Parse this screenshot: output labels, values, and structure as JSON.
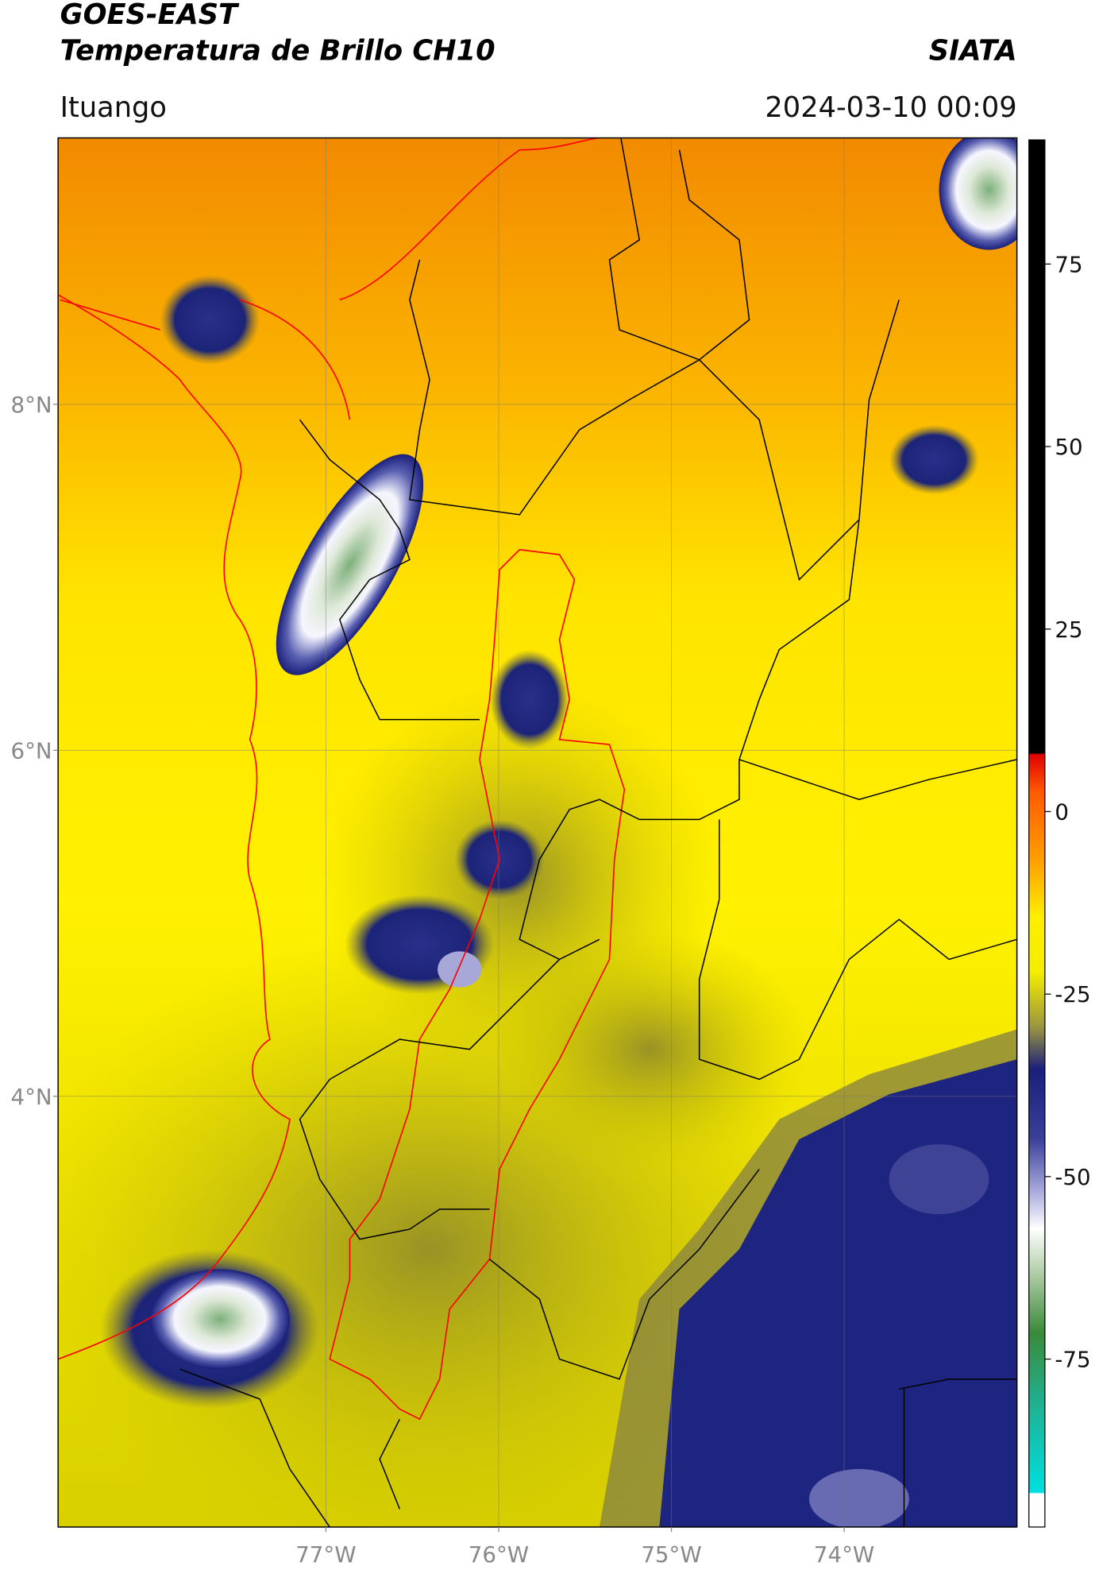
{
  "header": {
    "title": "GOES-EAST",
    "subtitle": "Temperatura de Brillo CH10",
    "source": "SIATA",
    "location": "Ituango",
    "timestamp": "2024-03-10 00:09"
  },
  "map": {
    "xlim": [
      -78.55,
      -73.0
    ],
    "ylim": [
      1.51,
      9.54
    ],
    "xticks": [
      {
        "value": -77,
        "label": "77°W"
      },
      {
        "value": -76,
        "label": "76°W"
      },
      {
        "value": -75,
        "label": "75°W"
      },
      {
        "value": -74,
        "label": "74°W"
      }
    ],
    "yticks": [
      {
        "value": 8,
        "label": "8°N"
      },
      {
        "value": 6,
        "label": "6°N"
      },
      {
        "value": 4,
        "label": "4°N"
      }
    ],
    "grid": true
  },
  "colorbar": {
    "lim": [
      -98,
      92
    ],
    "ticks": [
      75,
      50,
      25,
      0,
      -25,
      -50,
      -75
    ]
  }
}
